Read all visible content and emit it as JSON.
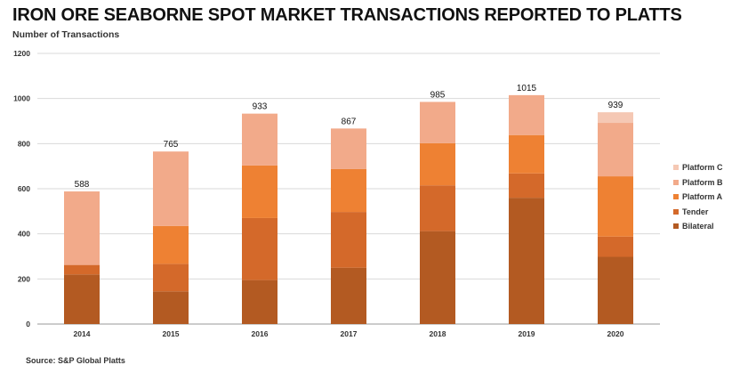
{
  "title": "IRON ORE SEABORNE SPOT MARKET TRANSACTIONS REPORTED TO PLATTS",
  "subtitle": "Number of Transactions",
  "source": "Source: S&P Global Platts",
  "chart_data": {
    "type": "bar",
    "stacked": true,
    "categories": [
      "2014",
      "2015",
      "2016",
      "2017",
      "2018",
      "2019",
      "2020"
    ],
    "series": [
      {
        "name": "Bilateral",
        "color": "#b35a22",
        "values": [
          220,
          145,
          195,
          250,
          412,
          560,
          298
        ]
      },
      {
        "name": "Tender",
        "color": "#d4692a",
        "values": [
          42,
          122,
          275,
          247,
          203,
          108,
          90
        ]
      },
      {
        "name": "Platform A",
        "color": "#ee8133",
        "values": [
          0,
          168,
          233,
          190,
          187,
          170,
          267
        ]
      },
      {
        "name": "Platform B",
        "color": "#f2aa8a",
        "values": [
          326,
          330,
          230,
          180,
          183,
          177,
          237
        ]
      },
      {
        "name": "Platform C",
        "color": "#f5c8b4",
        "values": [
          0,
          0,
          0,
          0,
          0,
          0,
          47
        ]
      }
    ],
    "totals": [
      588,
      765,
      933,
      867,
      985,
      1015,
      939
    ],
    "ylim": [
      0,
      1200
    ],
    "yticks": [
      0,
      200,
      400,
      600,
      800,
      1000,
      1200
    ],
    "legend_order": [
      "Platform C",
      "Platform B",
      "Platform A",
      "Tender",
      "Bilateral"
    ],
    "legend_position": "right",
    "grid": true
  }
}
